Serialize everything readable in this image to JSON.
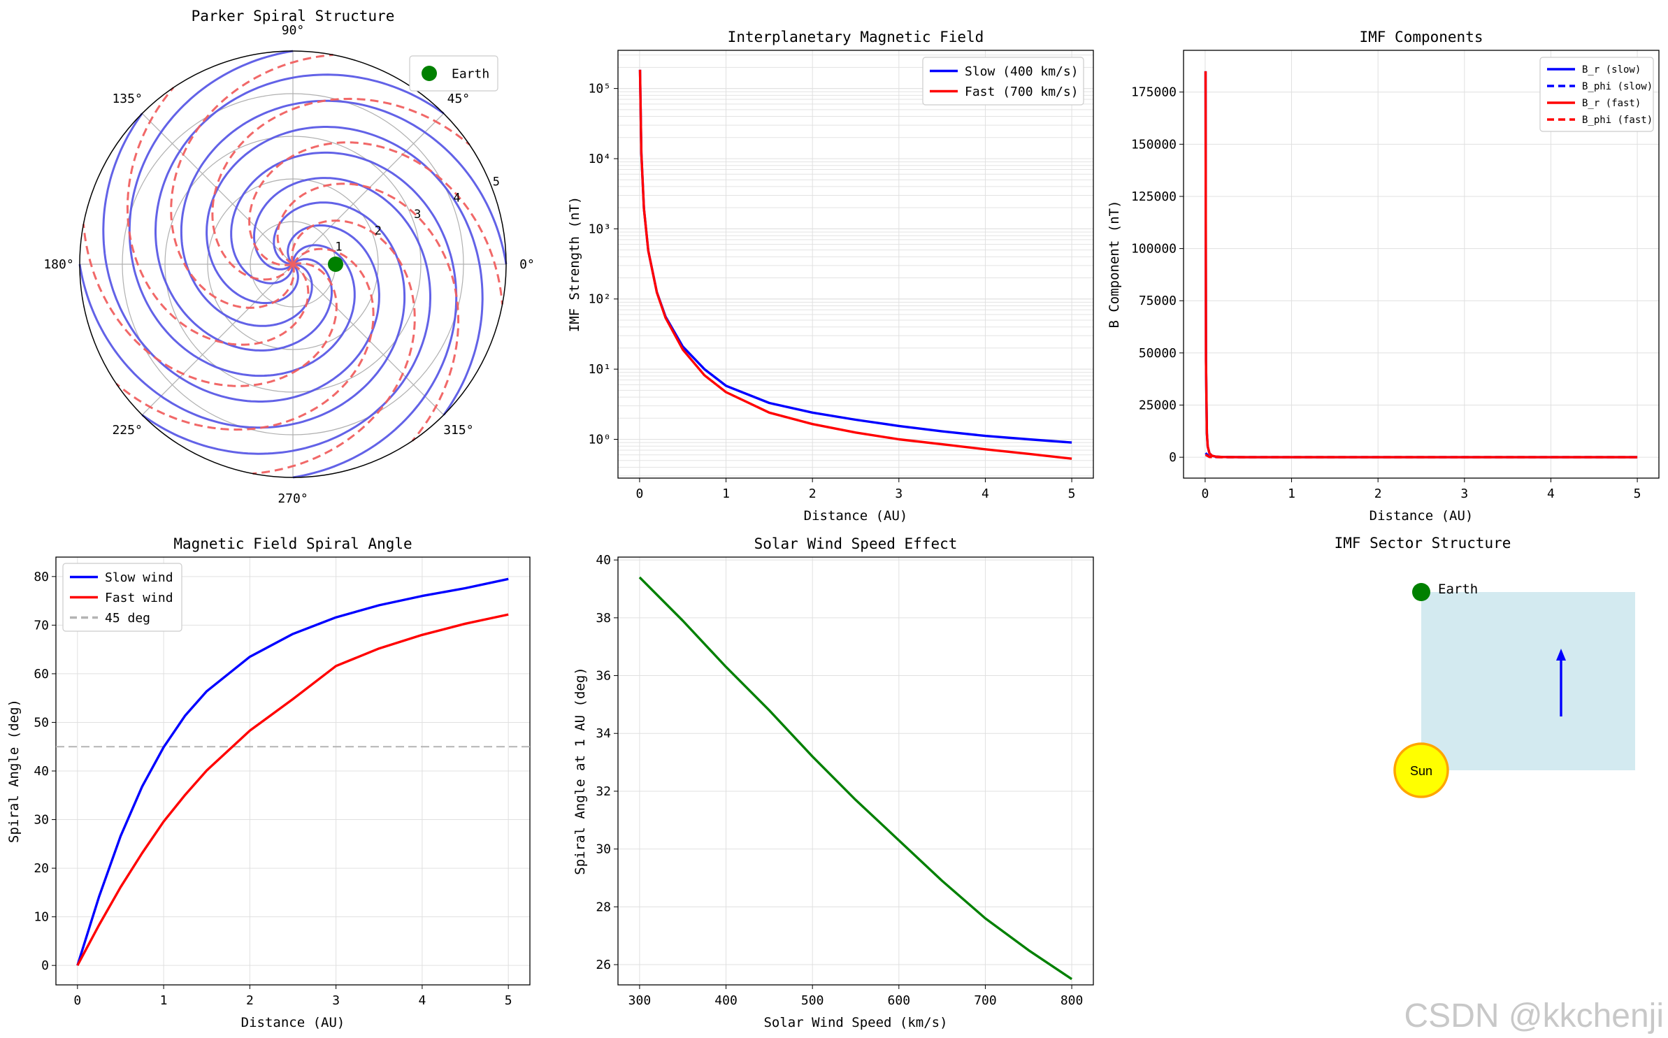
{
  "watermark": "CSDN @kkchenji",
  "chart_data": [
    {
      "id": "parker",
      "type": "polar-line",
      "title": "Parker Spiral Structure",
      "r_ticks": [
        "1",
        "2",
        "3",
        "4",
        "5"
      ],
      "r_max": 5,
      "angle_ticks": [
        "0°",
        "45°",
        "90°",
        "135°",
        "180°",
        "225°",
        "270°",
        "315°"
      ],
      "n_spirals": 8,
      "series": [
        {
          "name": "Slow (400 km/s)",
          "color": "#5a5ae6",
          "dash": "solid",
          "turns_per_au": 0.1
        },
        {
          "name": "Fast (700 km/s)",
          "color": "#f06060",
          "dash": "dashed",
          "turns_per_au": 0.057
        }
      ],
      "earth": {
        "label": "Earth",
        "r": 1,
        "theta_deg": 0,
        "color": "#008000"
      },
      "legend": [
        "Earth"
      ]
    },
    {
      "id": "imf",
      "type": "line",
      "title": "Interplanetary Magnetic Field",
      "xlabel": "Distance (AU)",
      "ylabel": "IMF Strength (nT)",
      "yscale": "log",
      "xlim": [
        -0.25,
        5.25
      ],
      "ylim": [
        0.28,
        350000
      ],
      "xticks": [
        0,
        1,
        2,
        3,
        4,
        5
      ],
      "yticks": [
        1,
        10,
        100,
        1000,
        10000,
        100000
      ],
      "ytick_labels": [
        "10⁰",
        "10¹",
        "10²",
        "10³",
        "10⁴",
        "10⁵"
      ],
      "series": [
        {
          "name": "Slow (400 km/s)",
          "color": "#0000ff",
          "x": [
            0.005,
            0.02,
            0.05,
            0.1,
            0.2,
            0.3,
            0.5,
            0.75,
            1,
            1.5,
            2,
            2.5,
            3,
            3.5,
            4,
            4.5,
            5
          ],
          "y": [
            185000,
            12000,
            1950,
            490,
            125,
            56,
            21,
            10,
            5.8,
            3.3,
            2.4,
            1.9,
            1.55,
            1.3,
            1.12,
            1.0,
            0.9
          ]
        },
        {
          "name": "Fast (700 km/s)",
          "color": "#ff0000",
          "x": [
            0.005,
            0.02,
            0.05,
            0.1,
            0.2,
            0.3,
            0.5,
            0.75,
            1,
            1.5,
            2,
            2.5,
            3,
            3.5,
            4,
            4.5,
            5
          ],
          "y": [
            185000,
            12000,
            1950,
            490,
            124,
            54,
            19,
            8.2,
            4.7,
            2.4,
            1.65,
            1.25,
            1.0,
            0.85,
            0.72,
            0.62,
            0.53
          ]
        }
      ],
      "legend": [
        "Slow (400 km/s)",
        "Fast (700 km/s)"
      ]
    },
    {
      "id": "components",
      "type": "line",
      "title": "IMF Components",
      "xlabel": "Distance (AU)",
      "ylabel": "B Component (nT)",
      "xlim": [
        -0.25,
        5.25
      ],
      "ylim": [
        -10000,
        195000
      ],
      "xticks": [
        0,
        1,
        2,
        3,
        4,
        5
      ],
      "yticks": [
        0,
        25000,
        50000,
        75000,
        100000,
        125000,
        150000,
        175000
      ],
      "series": [
        {
          "name": "B_r (slow)",
          "color": "#0000ff",
          "dash": "solid",
          "x": [
            0.005,
            0.01,
            0.02,
            0.03,
            0.05,
            0.08,
            0.12,
            0.2,
            0.5,
            1,
            2,
            3,
            4,
            5
          ],
          "y": [
            185000,
            46000,
            11500,
            5100,
            1850,
            720,
            320,
            115,
            18,
            4.6,
            1.2,
            0.5,
            0.3,
            0.2
          ]
        },
        {
          "name": "B_phi (slow)",
          "color": "#0000ff",
          "dash": "dashed",
          "x": [
            0.005,
            0.05,
            0.2,
            1,
            3,
            5
          ],
          "y": [
            2000,
            180,
            45,
            5,
            1.7,
            0.9
          ]
        },
        {
          "name": "B_r (fast)",
          "color": "#ff0000",
          "dash": "solid",
          "x": [
            0.005,
            0.01,
            0.02,
            0.03,
            0.05,
            0.08,
            0.12,
            0.2,
            0.5,
            1,
            2,
            3,
            4,
            5
          ],
          "y": [
            185000,
            46000,
            11500,
            5100,
            1850,
            720,
            320,
            115,
            18,
            4.6,
            1.2,
            0.5,
            0.3,
            0.2
          ]
        },
        {
          "name": "B_phi (fast)",
          "color": "#ff0000",
          "dash": "dashed",
          "x": [
            0.005,
            0.05,
            0.2,
            1,
            3,
            5
          ],
          "y": [
            1200,
            110,
            28,
            3,
            1,
            0.5
          ]
        }
      ],
      "legend": [
        "B_r (slow)",
        "B_phi (slow)",
        "B_r (fast)",
        "B_phi (fast)"
      ]
    },
    {
      "id": "spiral_angle",
      "type": "line",
      "title": "Magnetic Field Spiral Angle",
      "xlabel": "Distance (AU)",
      "ylabel": "Spiral Angle (deg)",
      "xlim": [
        -0.25,
        5.25
      ],
      "ylim": [
        -4,
        84
      ],
      "xticks": [
        0,
        1,
        2,
        3,
        4,
        5
      ],
      "yticks": [
        0,
        10,
        20,
        30,
        40,
        50,
        60,
        70,
        80
      ],
      "series": [
        {
          "name": "Slow wind",
          "color": "#0000ff",
          "x": [
            0,
            0.25,
            0.5,
            0.75,
            1,
            1.25,
            1.5,
            2,
            2.5,
            3,
            3.5,
            4,
            4.5,
            5
          ],
          "y": [
            0,
            14.1,
            26.6,
            36.8,
            44.9,
            51.4,
            56.4,
            63.5,
            68.2,
            71.6,
            74.1,
            76.0,
            77.6,
            79.5
          ]
        },
        {
          "name": "Fast wind",
          "color": "#ff0000",
          "x": [
            0,
            0.25,
            0.5,
            0.75,
            1,
            1.25,
            1.5,
            2,
            2.5,
            3,
            3.5,
            4,
            4.5,
            5
          ],
          "y": [
            0,
            8.3,
            16.1,
            23.1,
            29.6,
            35.1,
            40.1,
            48.3,
            54.8,
            61.6,
            65.2,
            68.0,
            70.3,
            72.2
          ]
        }
      ],
      "hline": {
        "name": "45 deg",
        "y": 45,
        "color": "#b4b4b4"
      },
      "legend": [
        "Slow wind",
        "Fast wind",
        "45 deg"
      ]
    },
    {
      "id": "speed_effect",
      "type": "line",
      "title": "Solar Wind Speed Effect",
      "xlabel": "Solar Wind Speed (km/s)",
      "ylabel": "Spiral Angle at 1 AU (deg)",
      "xlim": [
        275,
        825
      ],
      "ylim": [
        25.3,
        40.1
      ],
      "xticks": [
        300,
        400,
        500,
        600,
        700,
        800
      ],
      "yticks": [
        26,
        28,
        30,
        32,
        34,
        36,
        38,
        40
      ],
      "series": [
        {
          "name": "Spiral angle",
          "color": "#008000",
          "x": [
            300,
            350,
            400,
            450,
            500,
            550,
            600,
            650,
            700,
            750,
            800
          ],
          "y": [
            39.4,
            37.9,
            36.3,
            34.8,
            33.2,
            31.7,
            30.3,
            28.9,
            27.6,
            26.5,
            25.5
          ]
        }
      ]
    },
    {
      "id": "sector",
      "type": "diagram",
      "title": "IMF Sector Structure",
      "earth_label": "Earth",
      "sun_label": "Sun"
    }
  ]
}
